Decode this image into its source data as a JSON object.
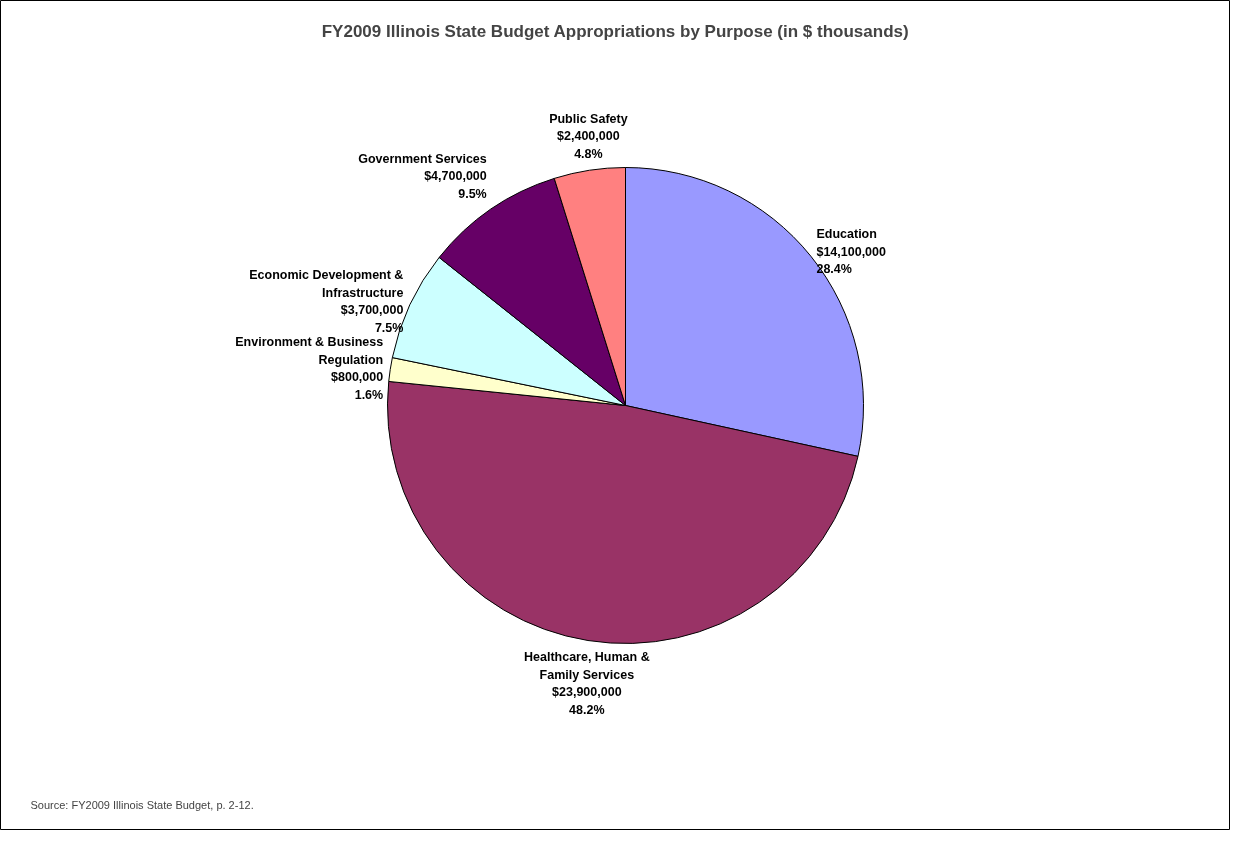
{
  "chart_data": {
    "type": "pie",
    "title": "FY2009 Illinois State Budget Appropriations by Purpose (in $ thousands)",
    "categories": [
      "Education",
      "Healthcare, Human & Family Services",
      "Environment & Business Regulation",
      "Economic Development & Infrastructure",
      "Government Services",
      "Public Safety"
    ],
    "values": [
      14100000,
      23900000,
      800000,
      3700000,
      4700000,
      2400000
    ],
    "colors": [
      "#9999ff",
      "#993366",
      "#ffffcc",
      "#ccffff",
      "#660066",
      "#ff8080"
    ],
    "value_labels": [
      "$14,100,000\n28.4%",
      "$23,900,000\n48.2%",
      "$800,000\n1.6%",
      "$3,700,000\n7.5%",
      "$4,700,000\n9.5%",
      "$2,400,000\n4.8%"
    ],
    "annotations": [
      "Source:  FY2009 Illinois State Budget, p. 2-12."
    ]
  }
}
